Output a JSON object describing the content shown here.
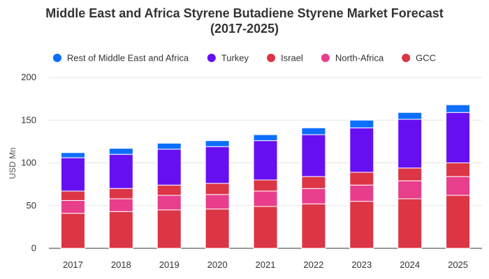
{
  "chart_data": {
    "type": "bar",
    "stacked": true,
    "title": "Middle East and Africa Styrene Butadiene Styrene Market Forecast (2017-2025)",
    "title_lines": [
      "Middle East and Africa Styrene Butadiene Styrene Market Forecast",
      "(2017-2025)"
    ],
    "xlabel": "",
    "ylabel": "USD Mn",
    "ylim": [
      0,
      200
    ],
    "yticks": [
      0,
      50,
      100,
      150,
      200
    ],
    "grid": true,
    "legend_position": "top",
    "categories": [
      "2017",
      "2018",
      "2019",
      "2020",
      "2021",
      "2022",
      "2023",
      "2024",
      "2025"
    ],
    "series": [
      {
        "name": "GCC",
        "color": "#dc3545",
        "values": [
          41,
          43,
          45,
          46,
          49,
          52,
          55,
          58,
          62
        ]
      },
      {
        "name": "North-Africa",
        "color": "#e83e8c",
        "values": [
          15,
          15,
          17,
          17,
          18,
          18,
          19,
          21,
          22
        ]
      },
      {
        "name": "Israel",
        "color": "#dc3545",
        "values": [
          11,
          12,
          12,
          13,
          13,
          14,
          15,
          15,
          16
        ]
      },
      {
        "name": "Turkey",
        "color": "#6610f2",
        "values": [
          39,
          40,
          42,
          43,
          46,
          49,
          52,
          57,
          59
        ]
      },
      {
        "name": "Rest of Middle East and Africa",
        "color": "#0d6efd",
        "values": [
          6,
          7,
          7,
          7,
          7,
          8,
          9,
          8,
          9
        ]
      }
    ],
    "legend_order": [
      "Rest of Middle East and Africa",
      "Turkey",
      "Israel",
      "North-Africa",
      "GCC"
    ]
  }
}
